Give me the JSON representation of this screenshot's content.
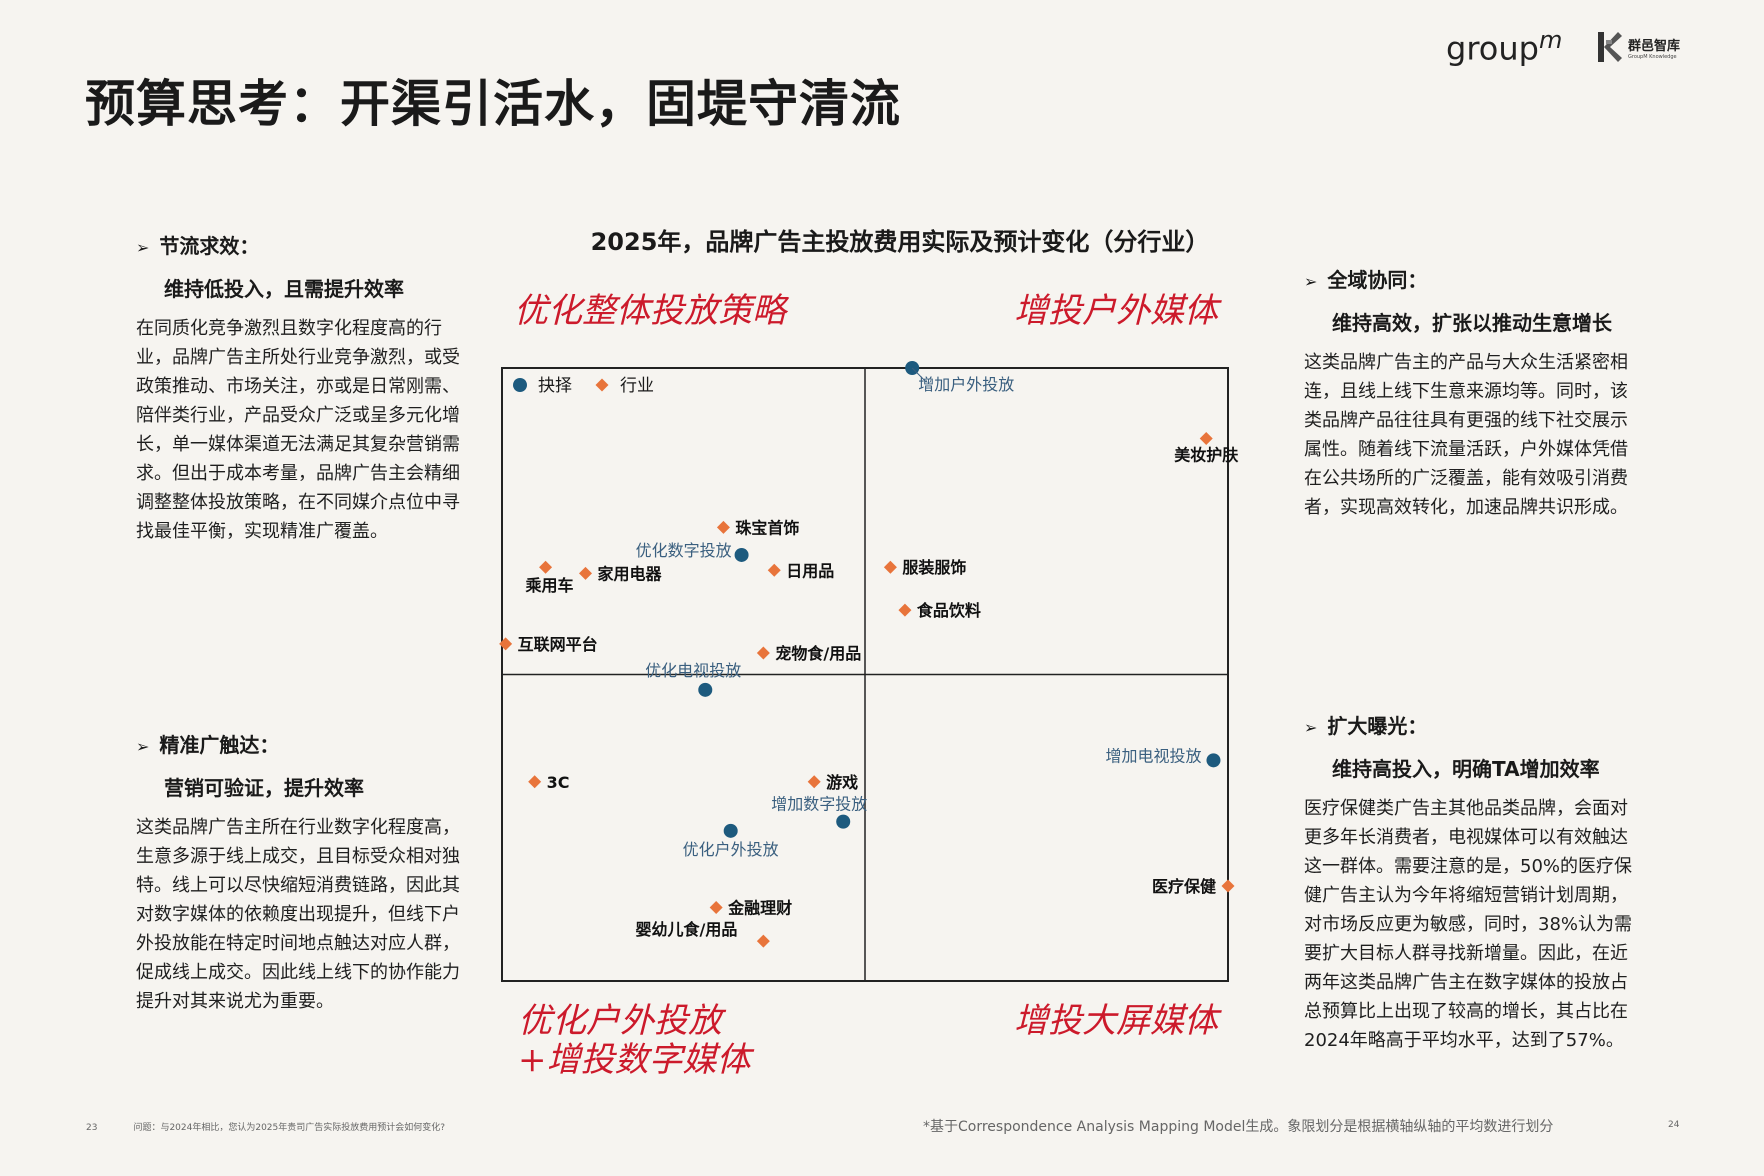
{
  "title": "预算思考：开渠引活水，固堤守清流",
  "logos": {
    "groupm": "group",
    "groupm_sup": "m",
    "knowledge_cn": "群邑智库",
    "knowledge_en": "GroupM Knowledge"
  },
  "left_top": {
    "heading": "节流求效：",
    "subheading": "维持低投入，且需提升效率",
    "body": "在同质化竞争激烈且数字化程度高的行业，品牌广告主所处行业竞争激烈，或受政策推动、市场关注，亦或是日常刚需、陪伴类行业，产品受众广泛或呈多元化增长，单一媒体渠道无法满足其复杂营销需求。但出于成本考量，品牌广告主会精细调整整体投放策略，在不同媒介点位中寻找最佳平衡，实现精准广覆盖。"
  },
  "left_bottom": {
    "heading": "精准广触达：",
    "subheading": "营销可验证，提升效率",
    "body": "这类品牌广告主所在行业数字化程度高，生意多源于线上成交，且目标受众相对独特。线上可以尽快缩短消费链路，因此其对数字媒体的依赖度出现提升，但线下户外投放能在特定时间地点触达对应人群，促成线上成交。因此线上线下的协作能力提升对其来说尤为重要。"
  },
  "right_top": {
    "heading": "全域协同：",
    "subheading": "维持高效，扩张以推动生意增长",
    "body": "这类品牌广告主的产品与大众生活紧密相连，且线上线下生意来源均等。同时，该类品牌产品往往具有更强的线下社交展示属性。随着线下流量活跃，户外媒体凭借在公共场所的广泛覆盖，能有效吸引消费者，实现高效转化，加速品牌共识形成。"
  },
  "right_bottom": {
    "heading": "扩大曝光：",
    "subheading": "维持高投入，明确TA增加效率",
    "body": "医疗保健类广告主其他品类品牌，会面对更多年长消费者，电视媒体可以有效触达这一群体。需要注意的是，50%的医疗保健广告主认为今年将缩短营销计划周期，对市场反应更为敏感，同时，38%认为需要扩大目标人群寻找新增量。因此，在近两年这类品牌广告主在数字媒体的投放占总预算比上出现了较高的增长，其占比在2024年略高于平均水平，达到了57%。"
  },
  "quadrant_labels": {
    "top_left": "优化整体投放策略",
    "top_right": "增投户外媒体",
    "bottom_left_line1": "优化户外投放",
    "bottom_left_line2": "+增投数字媒体",
    "bottom_right": "增投大屏媒体"
  },
  "chart_data": {
    "type": "scatter",
    "title": "2025年，品牌广告主投放费用实际及预计变化（分行业）",
    "xlim": [
      -1,
      1
    ],
    "ylim": [
      -1,
      1
    ],
    "grid": false,
    "quadrant_dividers": {
      "x": 0,
      "y": 0
    },
    "legend": {
      "placement": "top-left",
      "entries": [
        {
          "name": "抉择",
          "marker": "circle",
          "color": "#1d5a7e"
        },
        {
          "name": "行业",
          "marker": "diamond",
          "color": "#e8743b"
        }
      ]
    },
    "series": [
      {
        "name": "抉择",
        "marker": "circle",
        "color": "#1d5a7e",
        "label_color": "#3a5f7f",
        "points": [
          {
            "label": "增加户外投放",
            "x": 0.13,
            "y": 1.0
          },
          {
            "label": "优化数字投放",
            "x": -0.34,
            "y": 0.39
          },
          {
            "label": "优化电视投放",
            "x": -0.44,
            "y": -0.05
          },
          {
            "label": "增加电视投放",
            "x": 0.96,
            "y": -0.28
          },
          {
            "label": "增加数字投放",
            "x": -0.06,
            "y": -0.48
          },
          {
            "label": "优化户外投放",
            "x": -0.37,
            "y": -0.51
          }
        ]
      },
      {
        "name": "行业",
        "marker": "diamond",
        "color": "#e8743b",
        "label_color": "#111111",
        "points": [
          {
            "label": "美妆护肤",
            "x": 0.94,
            "y": 0.77
          },
          {
            "label": "珠宝首饰",
            "x": -0.39,
            "y": 0.48
          },
          {
            "label": "日用品",
            "x": -0.25,
            "y": 0.34
          },
          {
            "label": "家用电器",
            "x": -0.77,
            "y": 0.33
          },
          {
            "label": "乘用车",
            "x": -0.88,
            "y": 0.35
          },
          {
            "label": "服装服饰",
            "x": 0.07,
            "y": 0.35
          },
          {
            "label": "食品饮料",
            "x": 0.11,
            "y": 0.21
          },
          {
            "label": "互联网平台",
            "x": -0.99,
            "y": 0.1
          },
          {
            "label": "宠物食/用品",
            "x": -0.28,
            "y": 0.07
          },
          {
            "label": "3C",
            "x": -0.91,
            "y": -0.35
          },
          {
            "label": "游戏",
            "x": -0.14,
            "y": -0.35
          },
          {
            "label": "金融理财",
            "x": -0.41,
            "y": -0.76
          },
          {
            "label": "婴幼儿食/用品",
            "x": -0.28,
            "y": -0.87
          },
          {
            "label": "医疗保健",
            "x": 1.0,
            "y": -0.69
          }
        ]
      }
    ]
  },
  "footnotes": {
    "left_page": "23",
    "question": "问题：与2024年相比，您认为2025年贵司广告实际投放费用预计会如何变化?",
    "right_note": "*基于Correspondence Analysis Mapping Model生成。象限划分是根据横轴纵轴的平均数进行划分",
    "right_page": "24"
  }
}
